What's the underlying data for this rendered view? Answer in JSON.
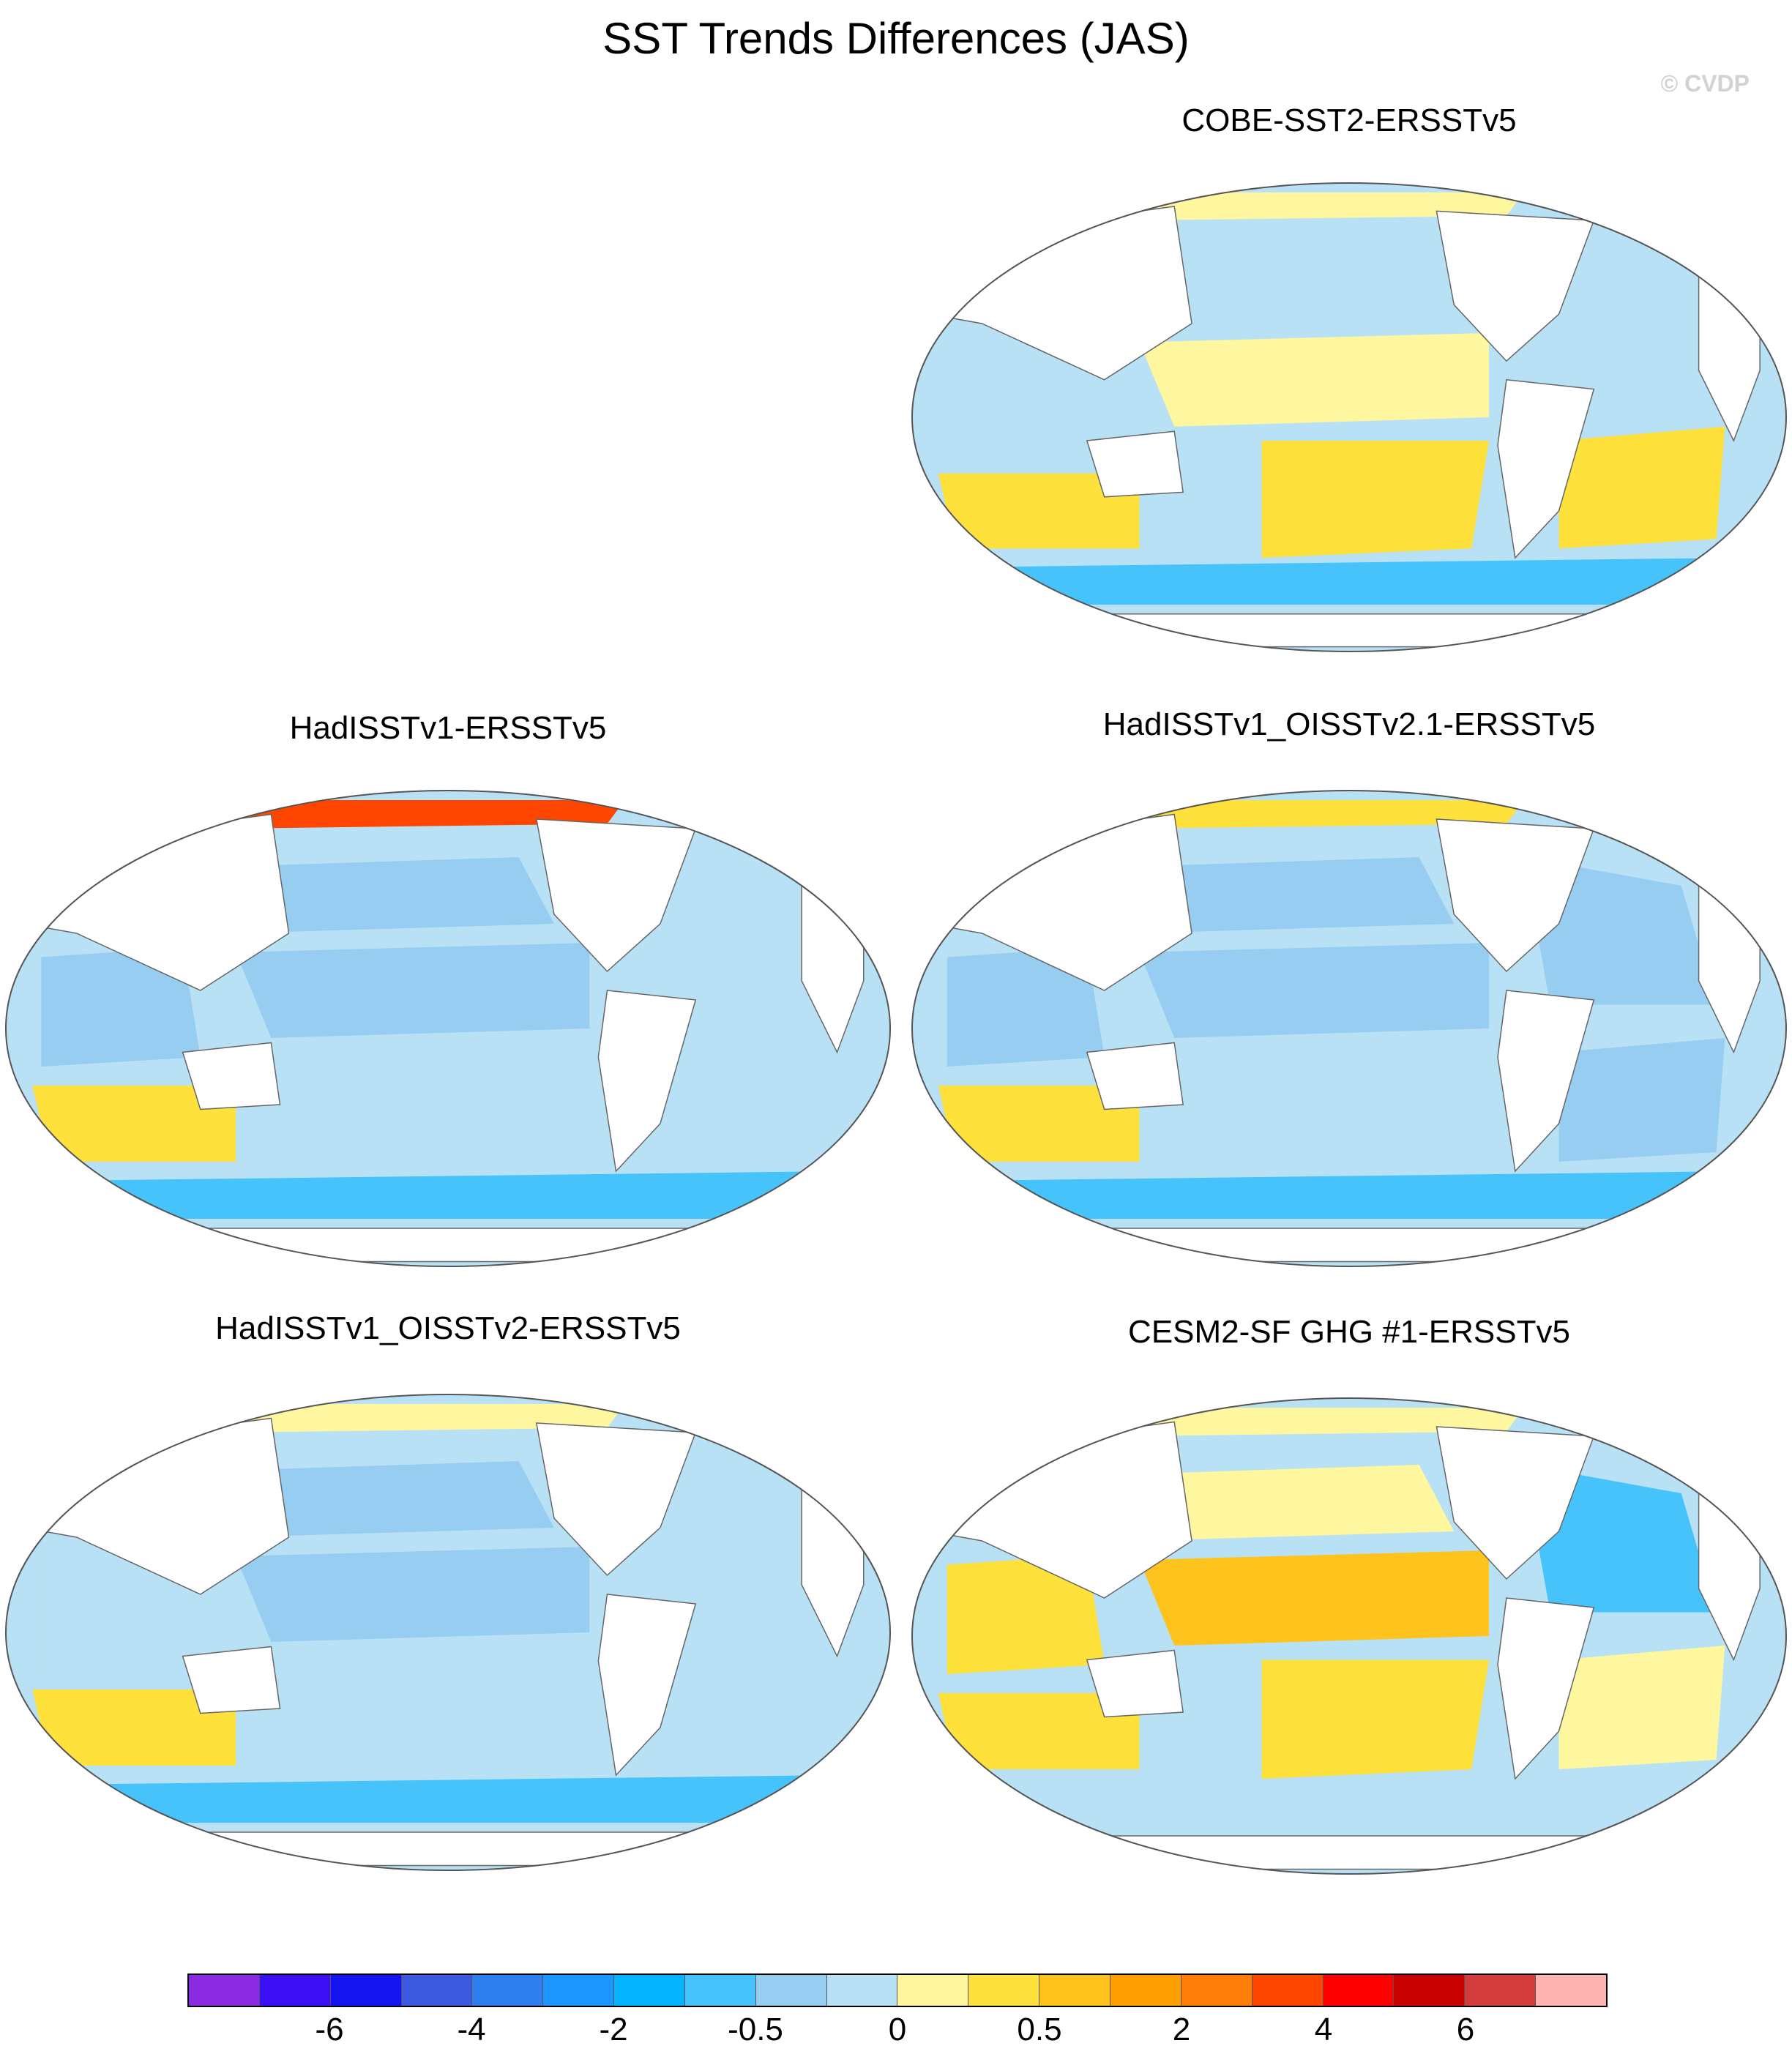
{
  "figure": {
    "title": "SST Trends Differences (JAS)",
    "watermark": "© CVDP"
  },
  "panels": [
    {
      "id": "p1",
      "title": "COBE-SST2-ERSSTv5",
      "regions": [
        {
          "name": "north-pacific-band",
          "level": -0.5
        },
        {
          "name": "tropical-pacific",
          "level": 0.2
        },
        {
          "name": "south-pacific",
          "level": 0.5
        },
        {
          "name": "indian-ocean",
          "level": -0.5
        },
        {
          "name": "south-indian",
          "level": 0.5
        },
        {
          "name": "atlantic",
          "level": -0.5
        },
        {
          "name": "south-atlantic",
          "level": 0.5
        },
        {
          "name": "southern-ocean",
          "level": -2
        },
        {
          "name": "arctic",
          "level": 0.2
        }
      ]
    },
    {
      "id": "p2",
      "title": "HadISSTv1-ERSSTv5",
      "regions": [
        {
          "name": "north-pacific-band",
          "level": -1
        },
        {
          "name": "tropical-pacific",
          "level": -1
        },
        {
          "name": "south-pacific",
          "level": -0.5
        },
        {
          "name": "indian-ocean",
          "level": -1
        },
        {
          "name": "south-indian",
          "level": 0.5
        },
        {
          "name": "atlantic",
          "level": -0.5
        },
        {
          "name": "south-atlantic",
          "level": -0.5
        },
        {
          "name": "southern-ocean",
          "level": -2
        },
        {
          "name": "arctic",
          "level": 4
        }
      ]
    },
    {
      "id": "p3",
      "title": "HadISSTv1_OISSTv2.1-ERSSTv5",
      "regions": [
        {
          "name": "north-pacific-band",
          "level": -1
        },
        {
          "name": "tropical-pacific",
          "level": -1
        },
        {
          "name": "south-pacific",
          "level": -0.5
        },
        {
          "name": "indian-ocean",
          "level": -1
        },
        {
          "name": "south-indian",
          "level": 0.5
        },
        {
          "name": "atlantic",
          "level": -1
        },
        {
          "name": "south-atlantic",
          "level": -1
        },
        {
          "name": "southern-ocean",
          "level": -2
        },
        {
          "name": "arctic",
          "level": 0.5
        }
      ]
    },
    {
      "id": "p4",
      "title": "HadISSTv1_OISSTv2-ERSSTv5",
      "regions": [
        {
          "name": "north-pacific-band",
          "level": -1
        },
        {
          "name": "tropical-pacific",
          "level": -1
        },
        {
          "name": "south-pacific",
          "level": -0.5
        },
        {
          "name": "indian-ocean",
          "level": -0.5
        },
        {
          "name": "south-indian",
          "level": 0.5
        },
        {
          "name": "atlantic",
          "level": -0.5
        },
        {
          "name": "south-atlantic",
          "level": -0.5
        },
        {
          "name": "southern-ocean",
          "level": -2
        },
        {
          "name": "arctic",
          "level": 0.2
        }
      ]
    },
    {
      "id": "p5",
      "title": "CESM2-SF GHG #1-ERSSTv5",
      "regions": [
        {
          "name": "north-pacific-band",
          "level": 0.2
        },
        {
          "name": "tropical-pacific",
          "level": 1
        },
        {
          "name": "south-pacific",
          "level": 0.5
        },
        {
          "name": "indian-ocean",
          "level": 0.5
        },
        {
          "name": "south-indian",
          "level": 0.5
        },
        {
          "name": "atlantic",
          "level": -2
        },
        {
          "name": "south-atlantic",
          "level": 0.2
        },
        {
          "name": "southern-ocean",
          "level": -0.5
        },
        {
          "name": "arctic",
          "level": 0.2
        }
      ]
    }
  ],
  "colorbar": {
    "colors": [
      "#8a2be2",
      "#3a0ff5",
      "#1414f0",
      "#3c5ae0",
      "#2f7ef0",
      "#1e96ff",
      "#05b4ff",
      "#46c3fa",
      "#96cdf0",
      "#b9e1f5",
      "#fff7a0",
      "#ffe13c",
      "#ffc31e",
      "#ffa000",
      "#ff7d0a",
      "#ff4600",
      "#ff0000",
      "#c80000",
      "#d23c3c",
      "#ffb4b4"
    ],
    "labels": [
      "-6",
      "-4",
      "-2",
      "-0.5",
      "0",
      "0.5",
      "2",
      "4",
      "6"
    ],
    "label_boundaries": [
      2,
      4,
      6,
      8,
      10,
      12,
      14,
      16,
      18
    ]
  },
  "level_colors": {
    "-2": "#46c3fa",
    "-1": "#96cdf0",
    "-0.5": "#b9e1f5",
    "0.2": "#fff7a0",
    "0.5": "#ffe13c",
    "1": "#ffc31e",
    "4": "#ff4600"
  }
}
